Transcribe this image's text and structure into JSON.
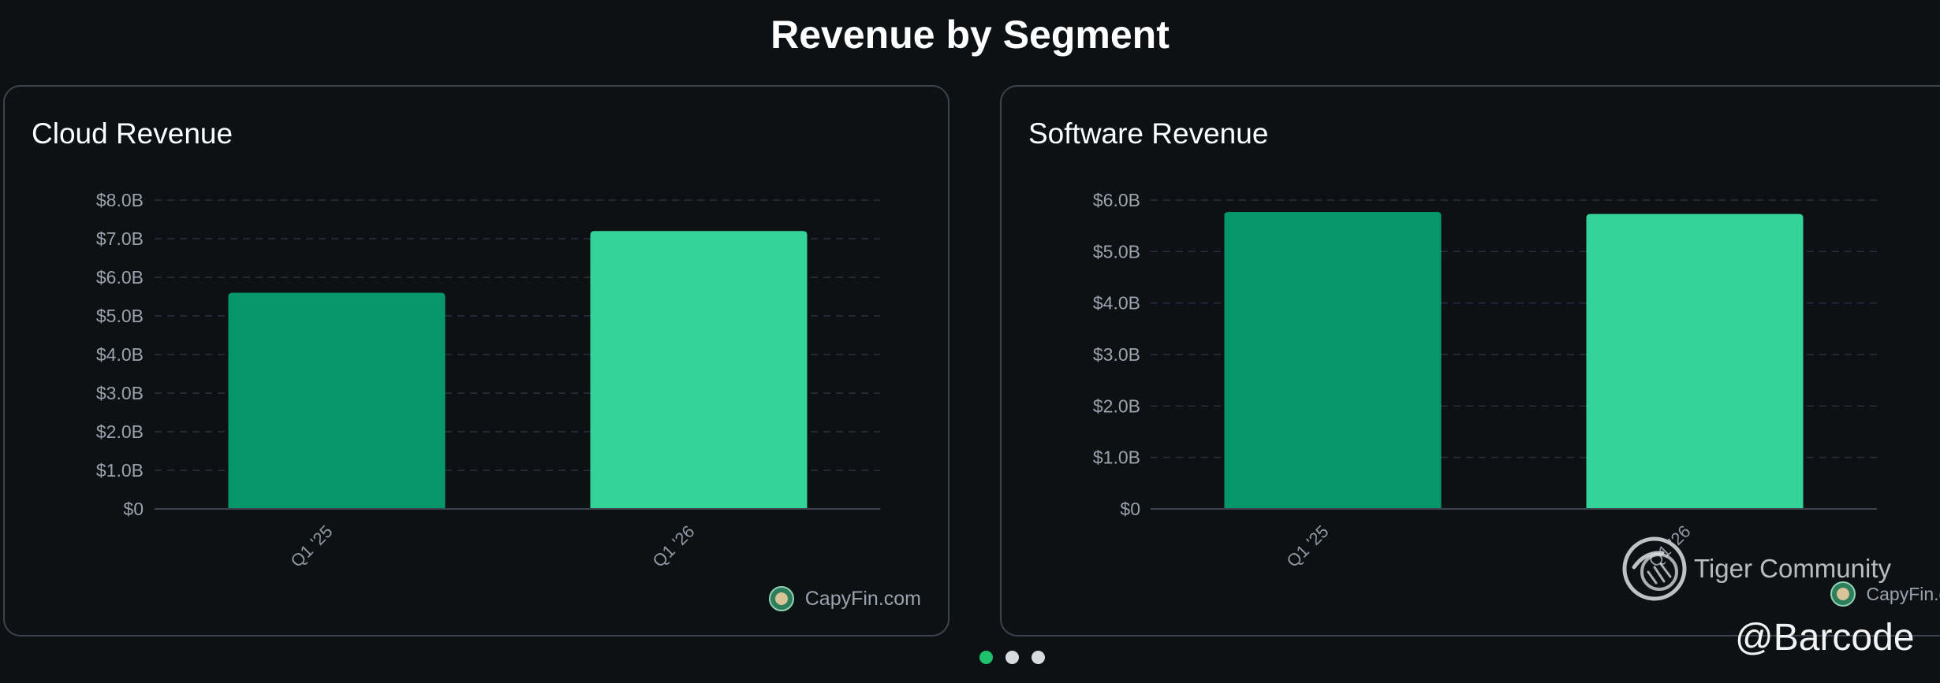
{
  "page": {
    "title": "Revenue by Segment",
    "brand_text": "CapyFin.com",
    "watermark_community": "Tiger Community",
    "watermark_handle": "@Barcode",
    "pagination": {
      "total": 3,
      "active_index": 0
    }
  },
  "colors": {
    "background": "#0d1114",
    "card_border": "#3d434c",
    "bar_prior": "#05976a",
    "bar_current": "#34d399",
    "dot_active": "#1ec26b",
    "dot_inactive": "#d7dade"
  },
  "chart_data": [
    {
      "type": "bar",
      "title": "Cloud Revenue",
      "categories": [
        "Q1 '25",
        "Q1 '26"
      ],
      "values": [
        5.6,
        7.2
      ],
      "unit": "B USD",
      "ylim": [
        0,
        8
      ],
      "yticks": [
        "$0",
        "$1.0B",
        "$2.0B",
        "$3.0B",
        "$4.0B",
        "$5.0B",
        "$6.0B",
        "$7.0B",
        "$8.0B"
      ],
      "grid": true,
      "bar_colors": [
        "#05976a",
        "#34d399"
      ]
    },
    {
      "type": "bar",
      "title": "Software Revenue",
      "categories": [
        "Q1 '25",
        "Q1 '26"
      ],
      "values": [
        5.77,
        5.73
      ],
      "unit": "B USD",
      "ylim": [
        0,
        6
      ],
      "yticks": [
        "$0",
        "$1.0B",
        "$2.0B",
        "$3.0B",
        "$4.0B",
        "$5.0B",
        "$6.0B"
      ],
      "grid": true,
      "bar_colors": [
        "#05976a",
        "#34d399"
      ]
    }
  ]
}
